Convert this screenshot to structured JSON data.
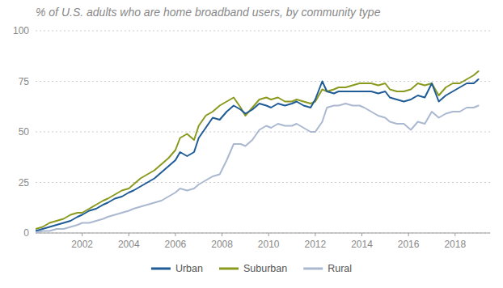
{
  "chart_data": {
    "type": "line",
    "title": "% of U.S. adults who are home broadband users, by community type",
    "x": [
      2000.0,
      2000.3,
      2000.6,
      2000.9,
      2001.2,
      2001.5,
      2001.8,
      2002.0,
      2002.3,
      2002.6,
      2002.9,
      2003.1,
      2003.4,
      2003.7,
      2004.0,
      2004.2,
      2004.5,
      2004.8,
      2005.1,
      2005.4,
      2005.7,
      2006.0,
      2006.2,
      2006.5,
      2006.8,
      2007.0,
      2007.3,
      2007.6,
      2007.9,
      2008.2,
      2008.5,
      2008.8,
      2009.0,
      2009.3,
      2009.6,
      2009.9,
      2010.1,
      2010.4,
      2010.7,
      2011.0,
      2011.2,
      2011.5,
      2011.8,
      2012.0,
      2012.3,
      2012.5,
      2012.8,
      2013.0,
      2013.3,
      2013.6,
      2013.9,
      2014.1,
      2014.4,
      2014.7,
      2015.0,
      2015.2,
      2015.5,
      2015.8,
      2016.1,
      2016.4,
      2016.7,
      2017.0,
      2017.3,
      2017.6,
      2017.9,
      2018.2,
      2018.5,
      2018.8,
      2019.0
    ],
    "series": [
      {
        "name": "Urban",
        "color": "#1f5b96",
        "values": [
          1,
          2,
          3,
          4,
          5,
          6,
          8,
          9,
          11,
          12,
          14,
          15,
          17,
          18,
          20,
          21,
          23,
          25,
          27,
          30,
          33,
          36,
          40,
          38,
          40,
          47,
          52,
          57,
          56,
          60,
          63,
          61,
          59,
          61,
          64,
          63,
          62,
          64,
          63,
          64,
          65,
          63,
          62,
          66,
          75,
          70,
          69,
          70,
          70,
          70,
          70,
          70,
          70,
          69,
          70,
          67,
          66,
          65,
          66,
          68,
          67,
          74,
          65,
          68,
          70,
          72,
          74,
          74,
          76
        ]
      },
      {
        "name": "Suburban",
        "color": "#8a9a1e",
        "values": [
          2,
          3,
          5,
          6,
          7,
          9,
          10,
          10,
          12,
          14,
          16,
          17,
          19,
          21,
          22,
          24,
          27,
          29,
          31,
          34,
          37,
          41,
          47,
          49,
          46,
          53,
          58,
          60,
          63,
          65,
          67,
          62,
          58,
          62,
          66,
          67,
          66,
          67,
          65,
          65,
          66,
          65,
          64,
          65,
          71,
          70,
          71,
          72,
          72,
          73,
          74,
          74,
          74,
          73,
          74,
          71,
          70,
          70,
          71,
          74,
          73,
          74,
          68,
          72,
          74,
          74,
          76,
          78,
          80
        ]
      },
      {
        "name": "Rural",
        "color": "#aab8d0",
        "values": [
          0,
          1,
          1,
          2,
          2,
          3,
          4,
          5,
          5,
          6,
          7,
          8,
          9,
          10,
          11,
          12,
          13,
          14,
          15,
          16,
          18,
          20,
          22,
          21,
          22,
          24,
          26,
          28,
          29,
          36,
          44,
          44,
          43,
          46,
          51,
          53,
          52,
          54,
          53,
          53,
          54,
          52,
          50,
          50,
          55,
          62,
          63,
          63,
          64,
          63,
          63,
          62,
          60,
          58,
          57,
          55,
          54,
          54,
          51,
          55,
          54,
          60,
          57,
          59,
          60,
          60,
          62,
          62,
          63
        ]
      }
    ],
    "xlim": [
      2000.0,
      2019.5
    ],
    "ylim": [
      0,
      100
    ],
    "xticks": [
      2002,
      2004,
      2006,
      2008,
      2010,
      2012,
      2014,
      2016,
      2018
    ],
    "yticks": [
      0,
      25,
      50,
      75,
      100
    ],
    "grid": true,
    "legend": "bottom"
  }
}
